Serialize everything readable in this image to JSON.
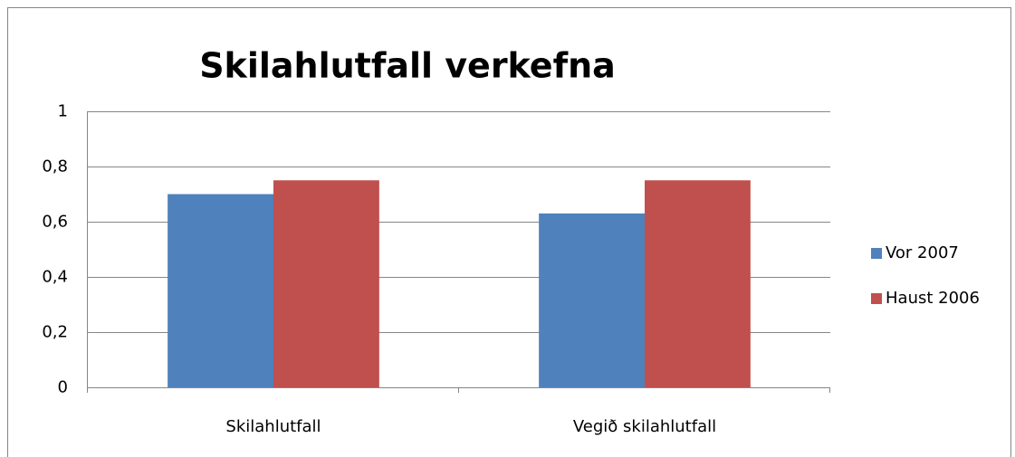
{
  "chart_data": {
    "type": "bar",
    "title": "Skilahlutfall verkefna",
    "categories": [
      "Skilahlutfall",
      "Vegið skilahlutfall"
    ],
    "series": [
      {
        "name": "Vor 2007",
        "color": "#4f81bd",
        "values": [
          0.7,
          0.63
        ]
      },
      {
        "name": "Haust 2006",
        "color": "#c0504d",
        "values": [
          0.75,
          0.75
        ]
      }
    ],
    "ylim": [
      0,
      1
    ],
    "yticks": [
      0,
      {
        "value": 0.2,
        "label": "0,2"
      },
      {
        "value": 0.4,
        "label": "0,4"
      },
      {
        "value": 0.6,
        "label": "0,6"
      },
      {
        "value": 0.8,
        "label": "0,8"
      },
      1
    ],
    "grid": true,
    "legend": "right"
  }
}
